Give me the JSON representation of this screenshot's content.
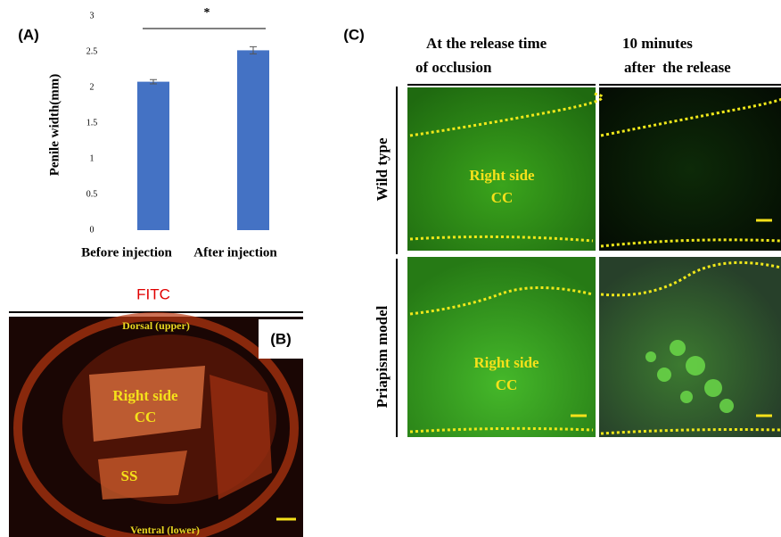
{
  "chart_data": {
    "type": "bar",
    "panel_label": "(A)",
    "y_label": "Penile width(mm)",
    "categories": [
      "Before injection",
      "After injection"
    ],
    "values": [
      2.08,
      2.52
    ],
    "errors": [
      0.03,
      0.05
    ],
    "color": "#4472c4",
    "ylim": [
      0,
      3
    ],
    "yticks": [
      0,
      0.5,
      1,
      1.5,
      2,
      2.5,
      3
    ],
    "annotation": "*"
  },
  "panel_b": {
    "label": "(B)",
    "title": "FITC",
    "top_label": "Dorsal (upper)",
    "bottom_label": "Ventral (lower)",
    "region_1": "Right side",
    "region_2": "CC",
    "region_3": "SS"
  },
  "panel_c": {
    "label": "(C)",
    "columns": [
      [
        "At the release time",
        "of occlusion"
      ],
      [
        "10 minutes",
        "after  the release"
      ]
    ],
    "rows": [
      "Wild type",
      "Priapism model"
    ],
    "region_1": "Right side",
    "region_2": "CC"
  }
}
